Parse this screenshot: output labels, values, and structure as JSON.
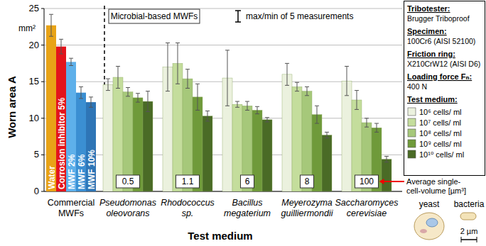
{
  "chart_data": {
    "type": "bar",
    "y_label": "Worn area A",
    "y_unit": "mm²",
    "x_label": "Test medium",
    "categories": [
      "Commercial MWFs",
      "Pseudomonas oleovorans",
      "Rhodococcus sp.",
      "Bacillus megaterium",
      "Meyerozyma guilliermondii",
      "Saccharomyces cerevisiae"
    ],
    "ylim": [
      0,
      25
    ],
    "yticks": [
      0,
      5,
      10,
      15,
      20,
      25
    ],
    "grid": true,
    "commercial_bars": [
      {
        "name": "Water",
        "color": "#e8a317",
        "value": 22.7,
        "error": 1.5
      },
      {
        "name": "Corrosion inhibitor 5%",
        "color": "#e3141c",
        "value": 19.8,
        "error": 1.0
      },
      {
        "name": "MWF 2%",
        "color": "#5eb0ea",
        "value": 17.7,
        "error": 0.5
      },
      {
        "name": "MWF 6%",
        "color": "#3b8fd2",
        "value": 13.5,
        "error": 0.8
      },
      {
        "name": "MWF 10%",
        "color": "#2e75b6",
        "value": 12.2,
        "error": 0.7
      }
    ],
    "series": [
      {
        "name": "10⁶ cells/ ml",
        "color": "#ebf1de",
        "values": [
          null,
          14.6,
          17.0,
          15.5,
          16.0,
          15.1
        ],
        "errors": [
          null,
          0.8,
          3.3,
          3.8,
          1.5,
          2.0
        ]
      },
      {
        "name": "10⁷ cells/ ml",
        "color": "#c4dd9c",
        "values": [
          null,
          15.6,
          17.5,
          11.9,
          14.3,
          12.5
        ],
        "errors": [
          null,
          1.5,
          2.8,
          0.4,
          0.6,
          1.3
        ]
      },
      {
        "name": "10⁸ cells/ ml",
        "color": "#a6c87a",
        "values": [
          null,
          13.6,
          15.4,
          11.7,
          13.7,
          9.4
        ],
        "errors": [
          null,
          0.6,
          1.3,
          0.6,
          0.6,
          0.6
        ]
      },
      {
        "name": "10⁹ cells/ ml",
        "color": "#6f9a3a",
        "values": [
          null,
          12.8,
          12.9,
          11.1,
          10.5,
          8.7
        ],
        "errors": [
          null,
          0.6,
          1.8,
          0.5,
          1.2,
          0.6
        ]
      },
      {
        "name": "10¹⁰ cells/ ml",
        "color": "#4a6b26",
        "values": [
          null,
          12.3,
          10.3,
          9.8,
          7.7,
          4.4
        ],
        "errors": [
          null,
          1.4,
          0.7,
          0.3,
          0.4,
          0.4
        ]
      }
    ],
    "legend_title": "Test medium:",
    "legend": "right",
    "annotations": {
      "group_label": "Microbial-based MWFs",
      "error_bar_note": "max/min of 5 measurements"
    },
    "cell_volumes": {
      "values": [
        null,
        0.5,
        1.1,
        6,
        8,
        100
      ],
      "label": [
        "Average single-",
        "cell-volume [µm³]"
      ]
    },
    "setup": [
      {
        "label": "Tribotester:",
        "value": "Brugger Triboproof"
      },
      {
        "label": "Specimen:",
        "value": "100Cr6 (AISI 52100)"
      },
      {
        "label": "Friction ring:",
        "value": "X210CrW12 (AISI D6)"
      },
      {
        "label": "Loading force Fₙ:",
        "value": "400 N"
      }
    ],
    "illustration": {
      "labels": [
        "yeast",
        "bacteria"
      ],
      "scale": "2 µm"
    }
  }
}
